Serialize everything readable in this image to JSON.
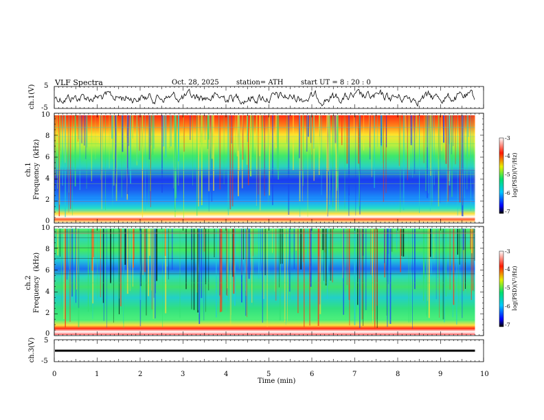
{
  "header": {
    "title": "VLF  Spectra",
    "date": "Oct. 28, 2025",
    "station": "station= ATH",
    "start": "start  UT  =   8  : 20 : 0"
  },
  "chart_data": {
    "type": "heatmap",
    "title": "VLF  Spectra",
    "xlabel": "Time  (min)",
    "xlim": [
      0,
      10
    ],
    "x_ticks": [
      "0",
      "1",
      "2",
      "3",
      "4",
      "5",
      "6",
      "7",
      "8",
      "9",
      "10"
    ],
    "data_end_min": 9.8,
    "panels": [
      {
        "id": "ch1-waveform",
        "type": "line",
        "ylabel": "ch.1(V)",
        "ylim": [
          -5,
          5
        ],
        "y_ticks": [
          "5",
          "-5"
        ]
      },
      {
        "id": "ch1-spectrogram",
        "type": "heatmap",
        "ylabel": "ch.1\nFrequency  (kHz)",
        "ylim": [
          0,
          10
        ],
        "y_ticks": [
          "0",
          "2",
          "4",
          "6",
          "8",
          "10"
        ],
        "colorbar": {
          "label": "log(PSD)(V²/Hz)",
          "range": [
            -7,
            -3
          ],
          "ticks": [
            "-3",
            "-4",
            "-5",
            "-6",
            "-7"
          ]
        }
      },
      {
        "id": "ch2-spectrogram",
        "type": "heatmap",
        "ylabel": "ch.2\nFrequency  (kHz)",
        "ylim": [
          0,
          10
        ],
        "y_ticks": [
          "0",
          "2",
          "4",
          "6",
          "8",
          "10"
        ],
        "colorbar": {
          "label": "log(PSD)(V²/Hz)",
          "range": [
            -7,
            -3
          ],
          "ticks": [
            "-3",
            "-4",
            "-5",
            "-6",
            "-7"
          ]
        }
      },
      {
        "id": "ch3-waveform",
        "type": "line",
        "ylabel": "ch.3(V)",
        "ylim": [
          -5,
          5
        ],
        "y_ticks": [
          "5",
          "-5"
        ]
      }
    ]
  },
  "colors": {
    "axis": "#000000",
    "trace": "#000000"
  }
}
